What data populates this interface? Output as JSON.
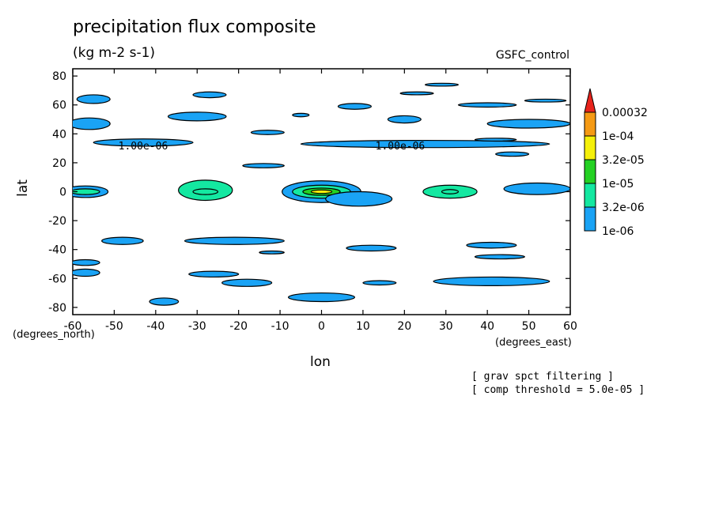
{
  "figure": {
    "title": "precipitation flux composite",
    "subtitle": "(kg m-2 s-1)",
    "model_label": "GSFC_control",
    "notes": [
      "[ grav spct filtering ]",
      "[ comp threshold = 5.0e-05 ]"
    ],
    "x_unit_label": "(degrees_east)",
    "y_unit_label": "(degrees_north)"
  },
  "chart_data": {
    "type": "contour",
    "xlabel": "lon",
    "ylabel": "lat",
    "xlim": [
      -60,
      60
    ],
    "ylim": [
      -85,
      85
    ],
    "xticks": [
      -60,
      -50,
      -40,
      -30,
      -20,
      -10,
      0,
      10,
      20,
      30,
      40,
      50,
      60
    ],
    "yticks": [
      -80,
      -60,
      -40,
      -20,
      0,
      20,
      40,
      60,
      80
    ],
    "contour_labels": [
      {
        "text": "1.00e-06",
        "lon": -49,
        "lat": 32
      },
      {
        "text": "1.00e-06",
        "lon": 13,
        "lat": 32
      }
    ],
    "colorbar": {
      "levels": [
        "0.00032",
        "1e-04",
        "3.2e-05",
        "1e-05",
        "3.2e-06",
        "1e-06"
      ],
      "colors": [
        "#e8231c",
        "#f59a14",
        "#f5f00a",
        "#24d123",
        "#14e8a1",
        "#1aa3f5"
      ]
    },
    "regions": [
      {
        "lon": 0,
        "lat": 0,
        "rlon": 9.5,
        "rlat": 7.5,
        "level": 5
      },
      {
        "lon": 0,
        "lat": 0,
        "rlon": 7,
        "rlat": 4.5,
        "level": 4
      },
      {
        "lon": 0,
        "lat": 0,
        "rlon": 4.5,
        "rlat": 2.5,
        "level": 3
      },
      {
        "lon": 0,
        "lat": 0,
        "rlon": 2.5,
        "rlat": 1.2,
        "level": 2
      },
      {
        "lon": 9,
        "lat": -5,
        "rlon": 8,
        "rlat": 5,
        "level": 5
      },
      {
        "lon": -28,
        "lat": 1,
        "rlon": 6.5,
        "rlat": 7,
        "level": 4
      },
      {
        "lon": -28,
        "lat": 0,
        "rlon": 3,
        "rlat": 2,
        "level": 4
      },
      {
        "lon": 31,
        "lat": 0,
        "rlon": 6.5,
        "rlat": 4.5,
        "level": 4
      },
      {
        "lon": 31,
        "lat": 0,
        "rlon": 2,
        "rlat": 1.5,
        "level": 4
      },
      {
        "lon": -57,
        "lat": 0,
        "rlon": 5.5,
        "rlat": 4,
        "level": 5
      },
      {
        "lon": -57,
        "lat": 0,
        "rlon": 3.5,
        "rlat": 2,
        "level": 4
      },
      {
        "lon": 52,
        "lat": 2,
        "rlon": 8,
        "rlat": 4,
        "level": 5
      },
      {
        "lon": -55,
        "lat": 64,
        "rlon": 4,
        "rlat": 3,
        "level": 5
      },
      {
        "lon": -56,
        "lat": 47,
        "rlon": 5,
        "rlat": 4,
        "level": 5
      },
      {
        "lon": -43,
        "lat": 34,
        "rlon": 12,
        "rlat": 2.5,
        "level": 5
      },
      {
        "lon": 25,
        "lat": 33,
        "rlon": 30,
        "rlat": 2.5,
        "level": 5
      },
      {
        "lon": -30,
        "lat": 52,
        "rlon": 7,
        "rlat": 3,
        "level": 5
      },
      {
        "lon": -27,
        "lat": 67,
        "rlon": 4,
        "rlat": 2,
        "level": 5
      },
      {
        "lon": 8,
        "lat": 59,
        "rlon": 4,
        "rlat": 2,
        "level": 5
      },
      {
        "lon": 20,
        "lat": 50,
        "rlon": 4,
        "rlat": 2.5,
        "level": 5
      },
      {
        "lon": 50,
        "lat": 47,
        "rlon": 10,
        "rlat": 3,
        "level": 5
      },
      {
        "lon": -13,
        "lat": 41,
        "rlon": 4,
        "rlat": 1.5,
        "level": 5
      },
      {
        "lon": -14,
        "lat": 18,
        "rlon": 5,
        "rlat": 1.5,
        "level": 5
      },
      {
        "lon": -5,
        "lat": 53,
        "rlon": 2,
        "rlat": 1.2,
        "level": 5
      },
      {
        "lon": 46,
        "lat": 26,
        "rlon": 4,
        "rlat": 1.5,
        "level": 5
      },
      {
        "lon": 23,
        "lat": 68,
        "rlon": 4,
        "rlat": 1,
        "level": 5
      },
      {
        "lon": 29,
        "lat": 74,
        "rlon": 4,
        "rlat": 1,
        "level": 5
      },
      {
        "lon": 40,
        "lat": 60,
        "rlon": 7,
        "rlat": 1.5,
        "level": 5
      },
      {
        "lon": 54,
        "lat": 63,
        "rlon": 5,
        "rlat": 1,
        "level": 5
      },
      {
        "lon": 42,
        "lat": 36,
        "rlon": 5,
        "rlat": 1,
        "level": 5
      },
      {
        "lon": -48,
        "lat": -34,
        "rlon": 5,
        "rlat": 2.5,
        "level": 5
      },
      {
        "lon": -21,
        "lat": -34,
        "rlon": 12,
        "rlat": 2.5,
        "level": 5
      },
      {
        "lon": 12,
        "lat": -39,
        "rlon": 6,
        "rlat": 2,
        "level": 5
      },
      {
        "lon": 41,
        "lat": -37,
        "rlon": 6,
        "rlat": 2,
        "level": 5
      },
      {
        "lon": 43,
        "lat": -45,
        "rlon": 6,
        "rlat": 1.5,
        "level": 5
      },
      {
        "lon": -57,
        "lat": -49,
        "rlon": 3.5,
        "rlat": 2,
        "level": 5
      },
      {
        "lon": -57,
        "lat": -56,
        "rlon": 3.5,
        "rlat": 2.5,
        "level": 5
      },
      {
        "lon": -26,
        "lat": -57,
        "rlon": 6,
        "rlat": 2,
        "level": 5
      },
      {
        "lon": -18,
        "lat": -63,
        "rlon": 6,
        "rlat": 2.5,
        "level": 5
      },
      {
        "lon": 14,
        "lat": -63,
        "rlon": 4,
        "rlat": 1.5,
        "level": 5
      },
      {
        "lon": 41,
        "lat": -62,
        "rlon": 14,
        "rlat": 3,
        "level": 5
      },
      {
        "lon": -38,
        "lat": -76,
        "rlon": 3.5,
        "rlat": 2.5,
        "level": 5
      },
      {
        "lon": 0,
        "lat": -73,
        "rlon": 8,
        "rlat": 3,
        "level": 5
      },
      {
        "lon": -12,
        "lat": -42,
        "rlon": 3,
        "rlat": 1,
        "level": 5
      }
    ]
  }
}
